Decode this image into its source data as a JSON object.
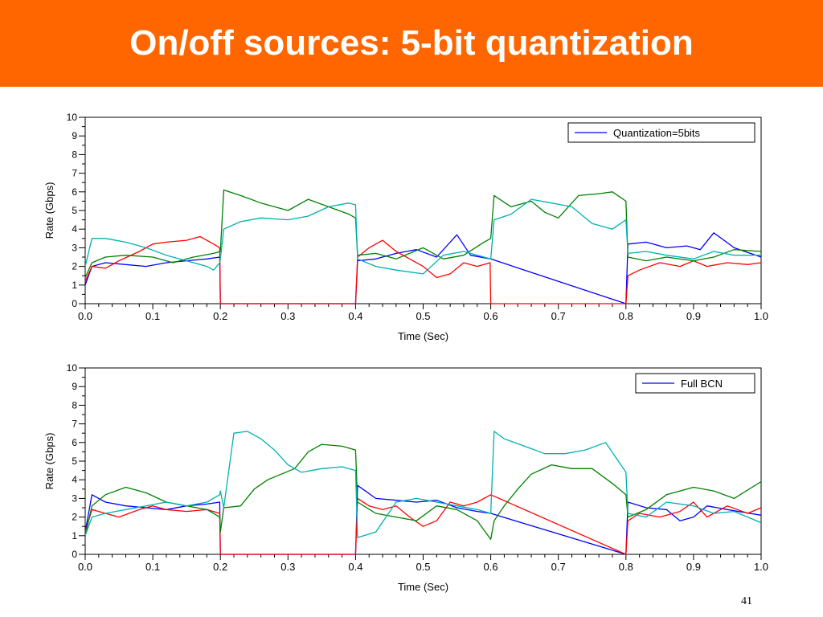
{
  "slide": {
    "title": "On/off sources: 5-bit quantization",
    "number": "41",
    "banner_color": "#FF6600"
  },
  "chart_data": [
    {
      "type": "line",
      "xlabel": "Time (Sec)",
      "ylabel": "Rate (Gbps)",
      "xlim": [
        0,
        1
      ],
      "ylim": [
        0,
        10
      ],
      "xticks": [
        "0.0",
        "0.1",
        "0.2",
        "0.3",
        "0.4",
        "0.5",
        "0.6",
        "0.7",
        "0.8",
        "0.9",
        "1.0"
      ],
      "yticks": [
        "0",
        "1",
        "2",
        "3",
        "4",
        "5",
        "6",
        "7",
        "8",
        "9",
        "10"
      ],
      "grid": false,
      "legend": {
        "position": "top-right",
        "entries": [
          {
            "label": "Quantization=5bits",
            "color": "#0000FF"
          }
        ]
      },
      "series": [
        {
          "color": "#0000FF",
          "x": [
            0.0,
            0.01,
            0.03,
            0.06,
            0.09,
            0.12,
            0.15,
            0.18,
            0.199,
            0.2,
            0.4,
            0.403,
            0.43,
            0.46,
            0.49,
            0.52,
            0.55,
            0.57,
            0.6,
            0.8,
            0.803,
            0.83,
            0.86,
            0.89,
            0.91,
            0.93,
            0.96,
            1.0
          ],
          "y": [
            1.0,
            2.0,
            2.2,
            2.1,
            2.0,
            2.2,
            2.3,
            2.4,
            2.5,
            0.0,
            0.0,
            2.3,
            2.4,
            2.7,
            2.9,
            2.5,
            3.7,
            2.6,
            2.4,
            0.0,
            3.2,
            3.3,
            3.0,
            3.1,
            2.9,
            3.8,
            3.0,
            2.5
          ]
        },
        {
          "color": "#FF0000",
          "x": [
            0.0,
            0.01,
            0.03,
            0.05,
            0.08,
            0.1,
            0.12,
            0.15,
            0.17,
            0.19,
            0.199,
            0.2,
            0.4,
            0.403,
            0.42,
            0.44,
            0.46,
            0.48,
            0.5,
            0.52,
            0.54,
            0.56,
            0.58,
            0.599,
            0.6,
            0.8,
            0.803,
            0.82,
            0.85,
            0.88,
            0.9,
            0.92,
            0.95,
            0.98,
            1.0
          ],
          "y": [
            1.2,
            2.0,
            1.9,
            2.3,
            2.8,
            3.2,
            3.3,
            3.4,
            3.6,
            3.2,
            3.0,
            0.0,
            0.0,
            2.5,
            3.0,
            3.4,
            2.8,
            2.4,
            2.0,
            1.4,
            1.6,
            2.2,
            2.0,
            2.2,
            0.0,
            0.0,
            1.5,
            1.8,
            2.2,
            2.0,
            2.3,
            2.0,
            2.2,
            2.1,
            2.2
          ]
        },
        {
          "color": "#008000",
          "x": [
            0.0,
            0.01,
            0.03,
            0.06,
            0.1,
            0.13,
            0.16,
            0.19,
            0.2,
            0.205,
            0.23,
            0.26,
            0.3,
            0.33,
            0.36,
            0.39,
            0.4,
            0.403,
            0.43,
            0.46,
            0.5,
            0.53,
            0.56,
            0.59,
            0.6,
            0.605,
            0.63,
            0.66,
            0.68,
            0.7,
            0.73,
            0.76,
            0.78,
            0.8,
            0.803,
            0.83,
            0.86,
            0.9,
            0.93,
            0.96,
            1.0
          ],
          "y": [
            1.4,
            2.2,
            2.5,
            2.6,
            2.5,
            2.2,
            2.5,
            2.7,
            2.8,
            6.1,
            5.8,
            5.4,
            5.0,
            5.6,
            5.2,
            4.8,
            4.6,
            2.6,
            2.7,
            2.4,
            3.0,
            2.4,
            2.6,
            3.3,
            3.5,
            5.8,
            5.2,
            5.5,
            4.9,
            4.6,
            5.8,
            5.9,
            6.0,
            5.5,
            2.5,
            2.3,
            2.5,
            2.3,
            2.5,
            2.9,
            2.8
          ]
        },
        {
          "color": "#00B0B0",
          "x": [
            0.0,
            0.01,
            0.03,
            0.06,
            0.09,
            0.12,
            0.15,
            0.18,
            0.19,
            0.199,
            0.2,
            0.205,
            0.23,
            0.26,
            0.3,
            0.33,
            0.36,
            0.39,
            0.4,
            0.403,
            0.43,
            0.46,
            0.5,
            0.53,
            0.56,
            0.59,
            0.6,
            0.605,
            0.63,
            0.66,
            0.69,
            0.72,
            0.75,
            0.78,
            0.8,
            0.803,
            0.83,
            0.86,
            0.9,
            0.93,
            0.96,
            1.0
          ],
          "y": [
            2.0,
            3.5,
            3.5,
            3.3,
            3.0,
            2.6,
            2.3,
            2.0,
            1.8,
            2.2,
            2.4,
            4.0,
            4.4,
            4.6,
            4.5,
            4.7,
            5.2,
            5.4,
            5.3,
            2.4,
            2.0,
            1.8,
            1.6,
            2.6,
            2.8,
            2.5,
            2.4,
            4.5,
            4.8,
            5.6,
            5.4,
            5.2,
            4.3,
            4.0,
            4.5,
            2.7,
            2.8,
            2.6,
            2.4,
            2.8,
            2.6,
            2.6
          ]
        }
      ]
    },
    {
      "type": "line",
      "xlabel": "Time (Sec)",
      "ylabel": "Rate (Gbps)",
      "xlim": [
        0,
        1
      ],
      "ylim": [
        0,
        10
      ],
      "xticks": [
        "0.0",
        "0.1",
        "0.2",
        "0.3",
        "0.4",
        "0.5",
        "0.6",
        "0.7",
        "0.8",
        "0.9",
        "1.0"
      ],
      "yticks": [
        "0",
        "1",
        "2",
        "3",
        "4",
        "5",
        "6",
        "7",
        "8",
        "9",
        "10"
      ],
      "grid": false,
      "legend": {
        "position": "top-right",
        "entries": [
          {
            "label": "Full BCN",
            "color": "#0000FF"
          }
        ]
      },
      "series": [
        {
          "color": "#0000FF",
          "x": [
            0.0,
            0.01,
            0.03,
            0.06,
            0.09,
            0.12,
            0.15,
            0.18,
            0.199,
            0.2,
            0.4,
            0.403,
            0.43,
            0.46,
            0.49,
            0.52,
            0.55,
            0.58,
            0.6,
            0.8,
            0.803,
            0.83,
            0.86,
            0.88,
            0.9,
            0.92,
            0.95,
            1.0
          ],
          "y": [
            1.2,
            3.2,
            2.8,
            2.6,
            2.5,
            2.4,
            2.6,
            2.7,
            2.8,
            0.0,
            0.0,
            3.7,
            3.0,
            2.9,
            2.8,
            2.9,
            2.5,
            2.3,
            2.2,
            0.0,
            2.8,
            2.5,
            2.4,
            1.8,
            2.0,
            2.6,
            2.4,
            2.1
          ]
        },
        {
          "color": "#FF0000",
          "x": [
            0.0,
            0.01,
            0.03,
            0.05,
            0.08,
            0.1,
            0.12,
            0.15,
            0.18,
            0.199,
            0.2,
            0.4,
            0.403,
            0.42,
            0.44,
            0.46,
            0.48,
            0.5,
            0.52,
            0.54,
            0.56,
            0.58,
            0.6,
            0.8,
            0.803,
            0.82,
            0.85,
            0.88,
            0.9,
            0.92,
            0.95,
            0.98,
            1.0
          ],
          "y": [
            1.2,
            2.4,
            2.2,
            2.0,
            2.4,
            2.6,
            2.4,
            2.3,
            2.4,
            2.2,
            0.0,
            0.0,
            3.0,
            2.6,
            2.4,
            2.6,
            2.0,
            1.5,
            1.8,
            2.8,
            2.6,
            2.8,
            3.2,
            0.0,
            1.8,
            2.2,
            2.0,
            2.3,
            2.8,
            2.0,
            2.6,
            2.2,
            2.5
          ]
        },
        {
          "color": "#008000",
          "x": [
            0.0,
            0.01,
            0.03,
            0.06,
            0.09,
            0.12,
            0.15,
            0.18,
            0.199,
            0.2,
            0.205,
            0.23,
            0.25,
            0.27,
            0.29,
            0.31,
            0.33,
            0.35,
            0.38,
            0.4,
            0.403,
            0.43,
            0.46,
            0.49,
            0.52,
            0.55,
            0.58,
            0.6,
            0.605,
            0.62,
            0.64,
            0.66,
            0.69,
            0.72,
            0.75,
            0.78,
            0.8,
            0.803,
            0.83,
            0.86,
            0.9,
            0.93,
            0.96,
            1.0
          ],
          "y": [
            1.0,
            2.6,
            3.2,
            3.6,
            3.3,
            2.8,
            2.6,
            2.4,
            2.0,
            1.2,
            2.5,
            2.6,
            3.5,
            4.0,
            4.3,
            4.6,
            5.5,
            5.9,
            5.8,
            5.6,
            2.8,
            2.2,
            2.0,
            1.8,
            2.6,
            2.4,
            1.8,
            0.8,
            1.8,
            2.6,
            3.5,
            4.3,
            4.8,
            4.6,
            4.6,
            3.8,
            3.2,
            2.0,
            2.4,
            3.2,
            3.6,
            3.4,
            3.0,
            3.9
          ]
        },
        {
          "color": "#00B0B0",
          "x": [
            0.0,
            0.01,
            0.03,
            0.06,
            0.09,
            0.12,
            0.15,
            0.18,
            0.199,
            0.2,
            0.205,
            0.22,
            0.24,
            0.26,
            0.28,
            0.3,
            0.32,
            0.35,
            0.38,
            0.4,
            0.403,
            0.43,
            0.46,
            0.49,
            0.52,
            0.55,
            0.58,
            0.6,
            0.605,
            0.62,
            0.65,
            0.68,
            0.71,
            0.74,
            0.77,
            0.8,
            0.803,
            0.83,
            0.86,
            0.9,
            0.93,
            0.96,
            1.0
          ],
          "y": [
            1.0,
            2.0,
            2.2,
            2.4,
            2.6,
            2.8,
            2.6,
            2.8,
            3.2,
            3.4,
            2.5,
            6.5,
            6.6,
            6.2,
            5.6,
            4.8,
            4.4,
            4.6,
            4.7,
            4.5,
            0.9,
            1.2,
            2.8,
            3.0,
            2.8,
            2.6,
            2.4,
            2.2,
            6.6,
            6.2,
            5.8,
            5.4,
            5.4,
            5.6,
            6.0,
            4.4,
            2.2,
            2.0,
            2.8,
            2.6,
            2.2,
            2.3,
            1.7
          ]
        }
      ]
    }
  ]
}
